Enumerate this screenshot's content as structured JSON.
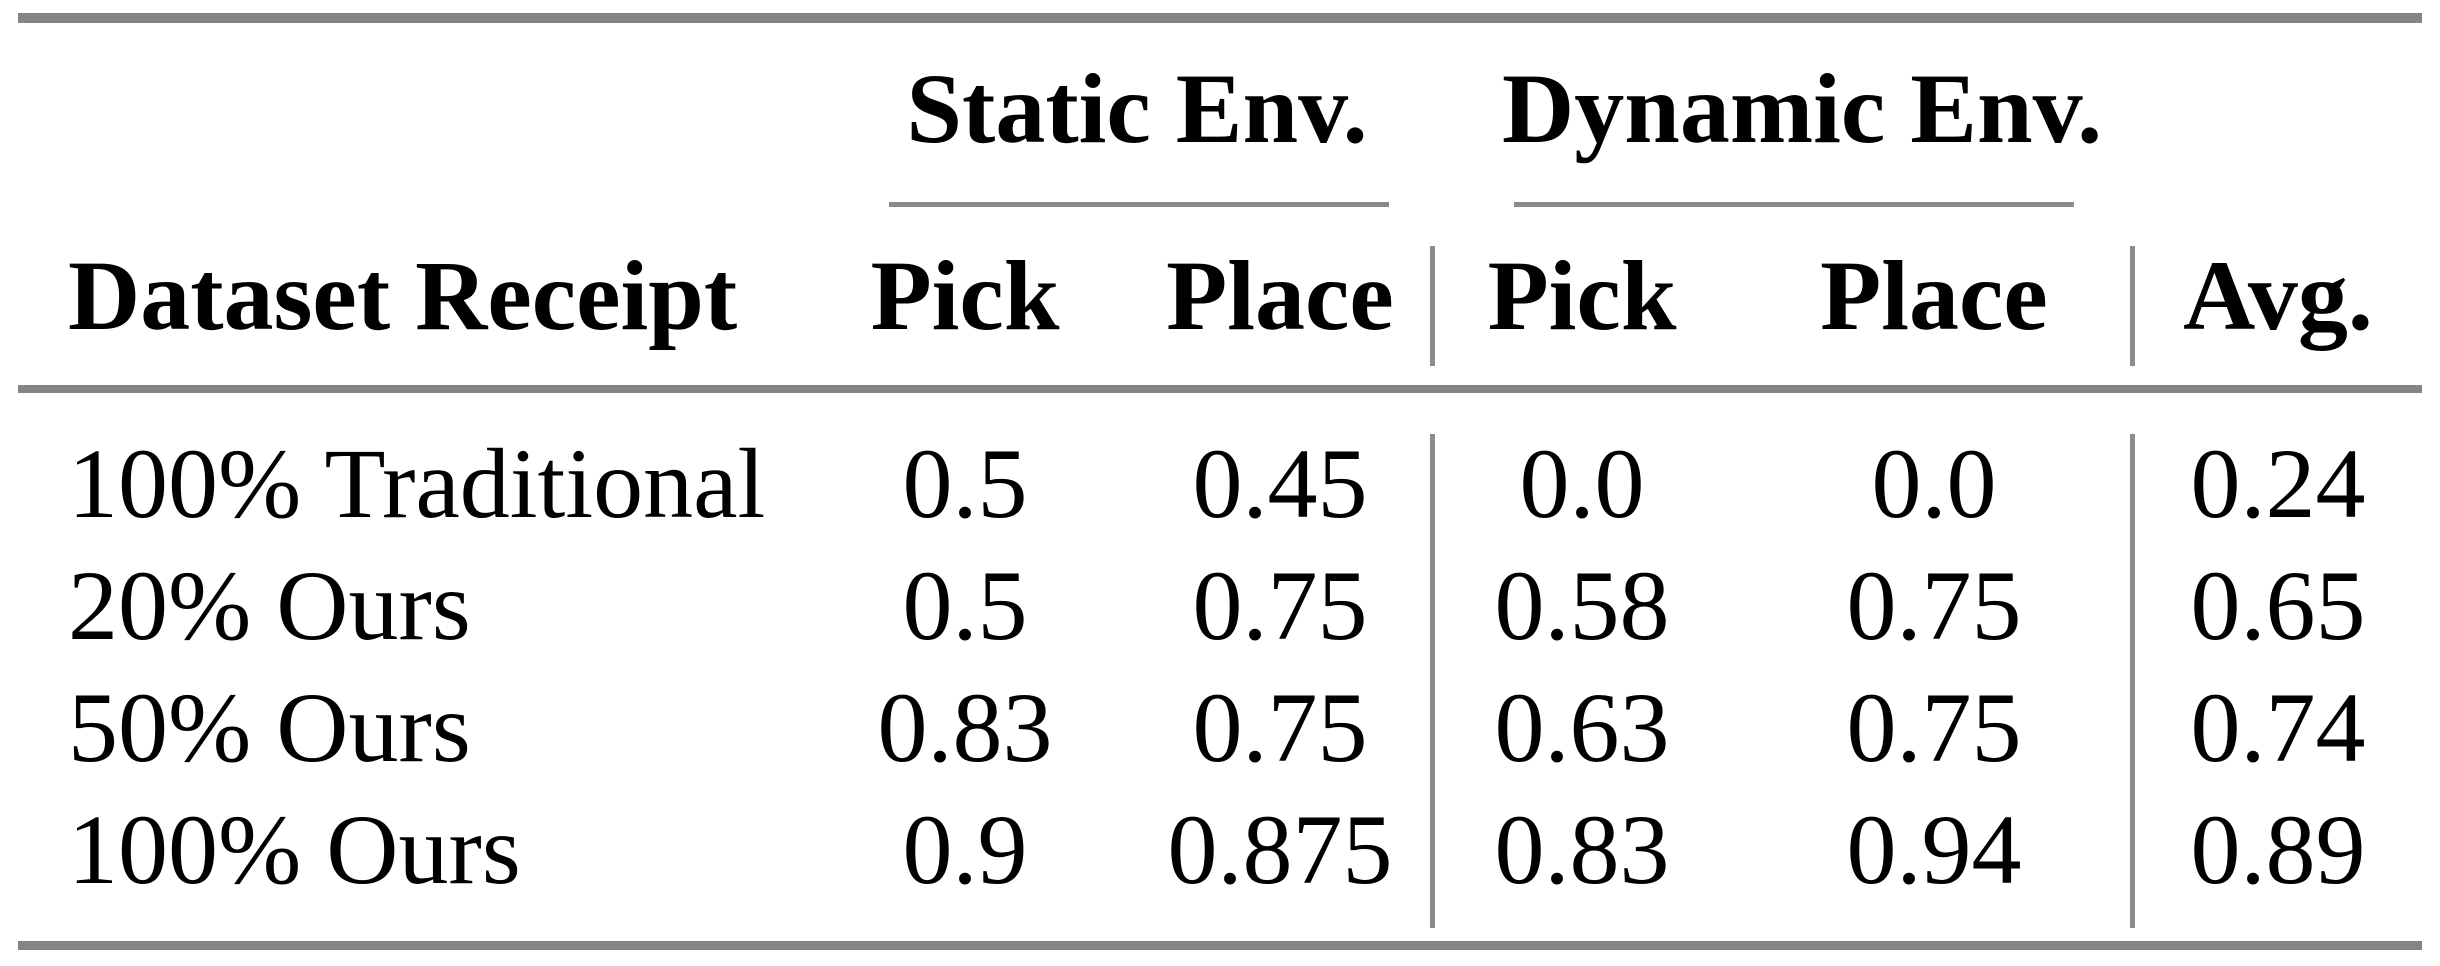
{
  "table": {
    "group_headers": {
      "static": "Static Env.",
      "dynamic": "Dynamic Env."
    },
    "columns": {
      "dataset": "Dataset Receipt",
      "static_pick": "Pick",
      "static_place": "Place",
      "dynamic_pick": "Pick",
      "dynamic_place": "Place",
      "avg": "Avg."
    },
    "rows": [
      {
        "dataset": "100% Traditional",
        "static_pick": "0.5",
        "static_place": "0.45",
        "dynamic_pick": "0.0",
        "dynamic_place": "0.0",
        "avg": "0.24"
      },
      {
        "dataset": "20% Ours",
        "static_pick": "0.5",
        "static_place": "0.75",
        "dynamic_pick": "0.58",
        "dynamic_place": "0.75",
        "avg": "0.65"
      },
      {
        "dataset": "50% Ours",
        "static_pick": "0.83",
        "static_place": "0.75",
        "dynamic_pick": "0.63",
        "dynamic_place": "0.75",
        "avg": "0.74"
      },
      {
        "dataset": "100% Ours",
        "static_pick": "0.9",
        "static_place": "0.875",
        "dynamic_pick": "0.83",
        "dynamic_place": "0.94",
        "avg": "0.89"
      }
    ],
    "colors": {
      "rule_heavy": "#848484",
      "rule_light": "#8a8a8a",
      "text": "#000000",
      "background": "#ffffff"
    }
  },
  "chart_data": {
    "type": "table",
    "title": "",
    "column_groups": [
      "Static Env.",
      "Dynamic Env."
    ],
    "columns": [
      "Dataset Receipt",
      "Pick",
      "Place",
      "Pick",
      "Place",
      "Avg."
    ],
    "rows": [
      [
        "100% Traditional",
        0.5,
        0.45,
        0.0,
        0.0,
        0.24
      ],
      [
        "20% Ours",
        0.5,
        0.75,
        0.58,
        0.75,
        0.65
      ],
      [
        "50% Ours",
        0.83,
        0.75,
        0.63,
        0.75,
        0.74
      ],
      [
        "100% Ours",
        0.9,
        0.875,
        0.83,
        0.94,
        0.89
      ]
    ]
  }
}
